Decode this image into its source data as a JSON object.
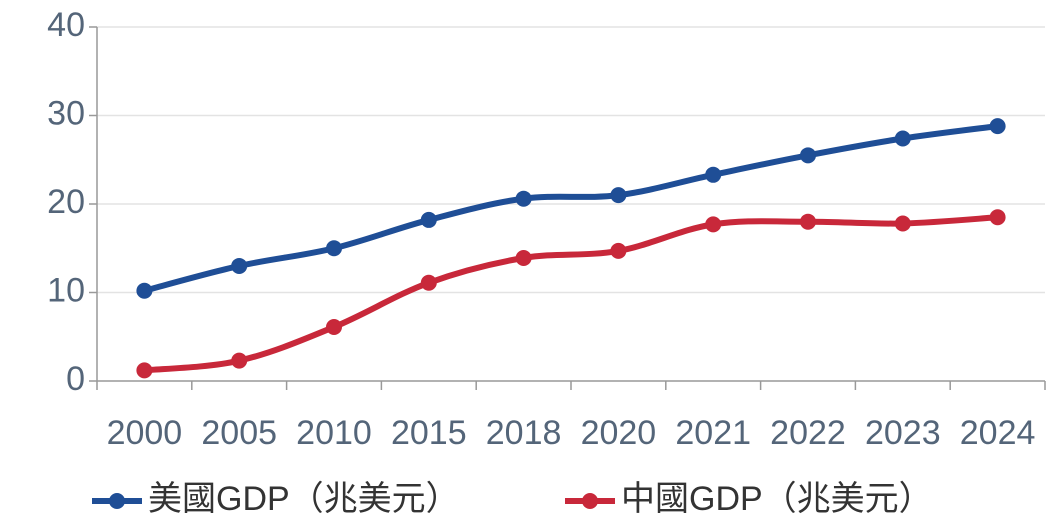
{
  "chart_data": {
    "type": "line",
    "categories": [
      "2000",
      "2005",
      "2010",
      "2015",
      "2018",
      "2020",
      "2021",
      "2022",
      "2023",
      "2024"
    ],
    "series": [
      {
        "name": "美國GDP（兆美元）",
        "color": "#1f4e96",
        "values": [
          10.2,
          13.0,
          15.0,
          18.2,
          20.6,
          21.0,
          23.3,
          25.5,
          27.4,
          28.8
        ]
      },
      {
        "name": "中國GDP（兆美元）",
        "color": "#c8283a",
        "values": [
          1.2,
          2.3,
          6.1,
          11.1,
          13.9,
          14.7,
          17.7,
          18.0,
          17.8,
          18.5
        ]
      }
    ],
    "ylim": [
      0,
      40
    ],
    "yticks": [
      0,
      10,
      20,
      30,
      40
    ],
    "grid": true,
    "legend": "bottom"
  }
}
